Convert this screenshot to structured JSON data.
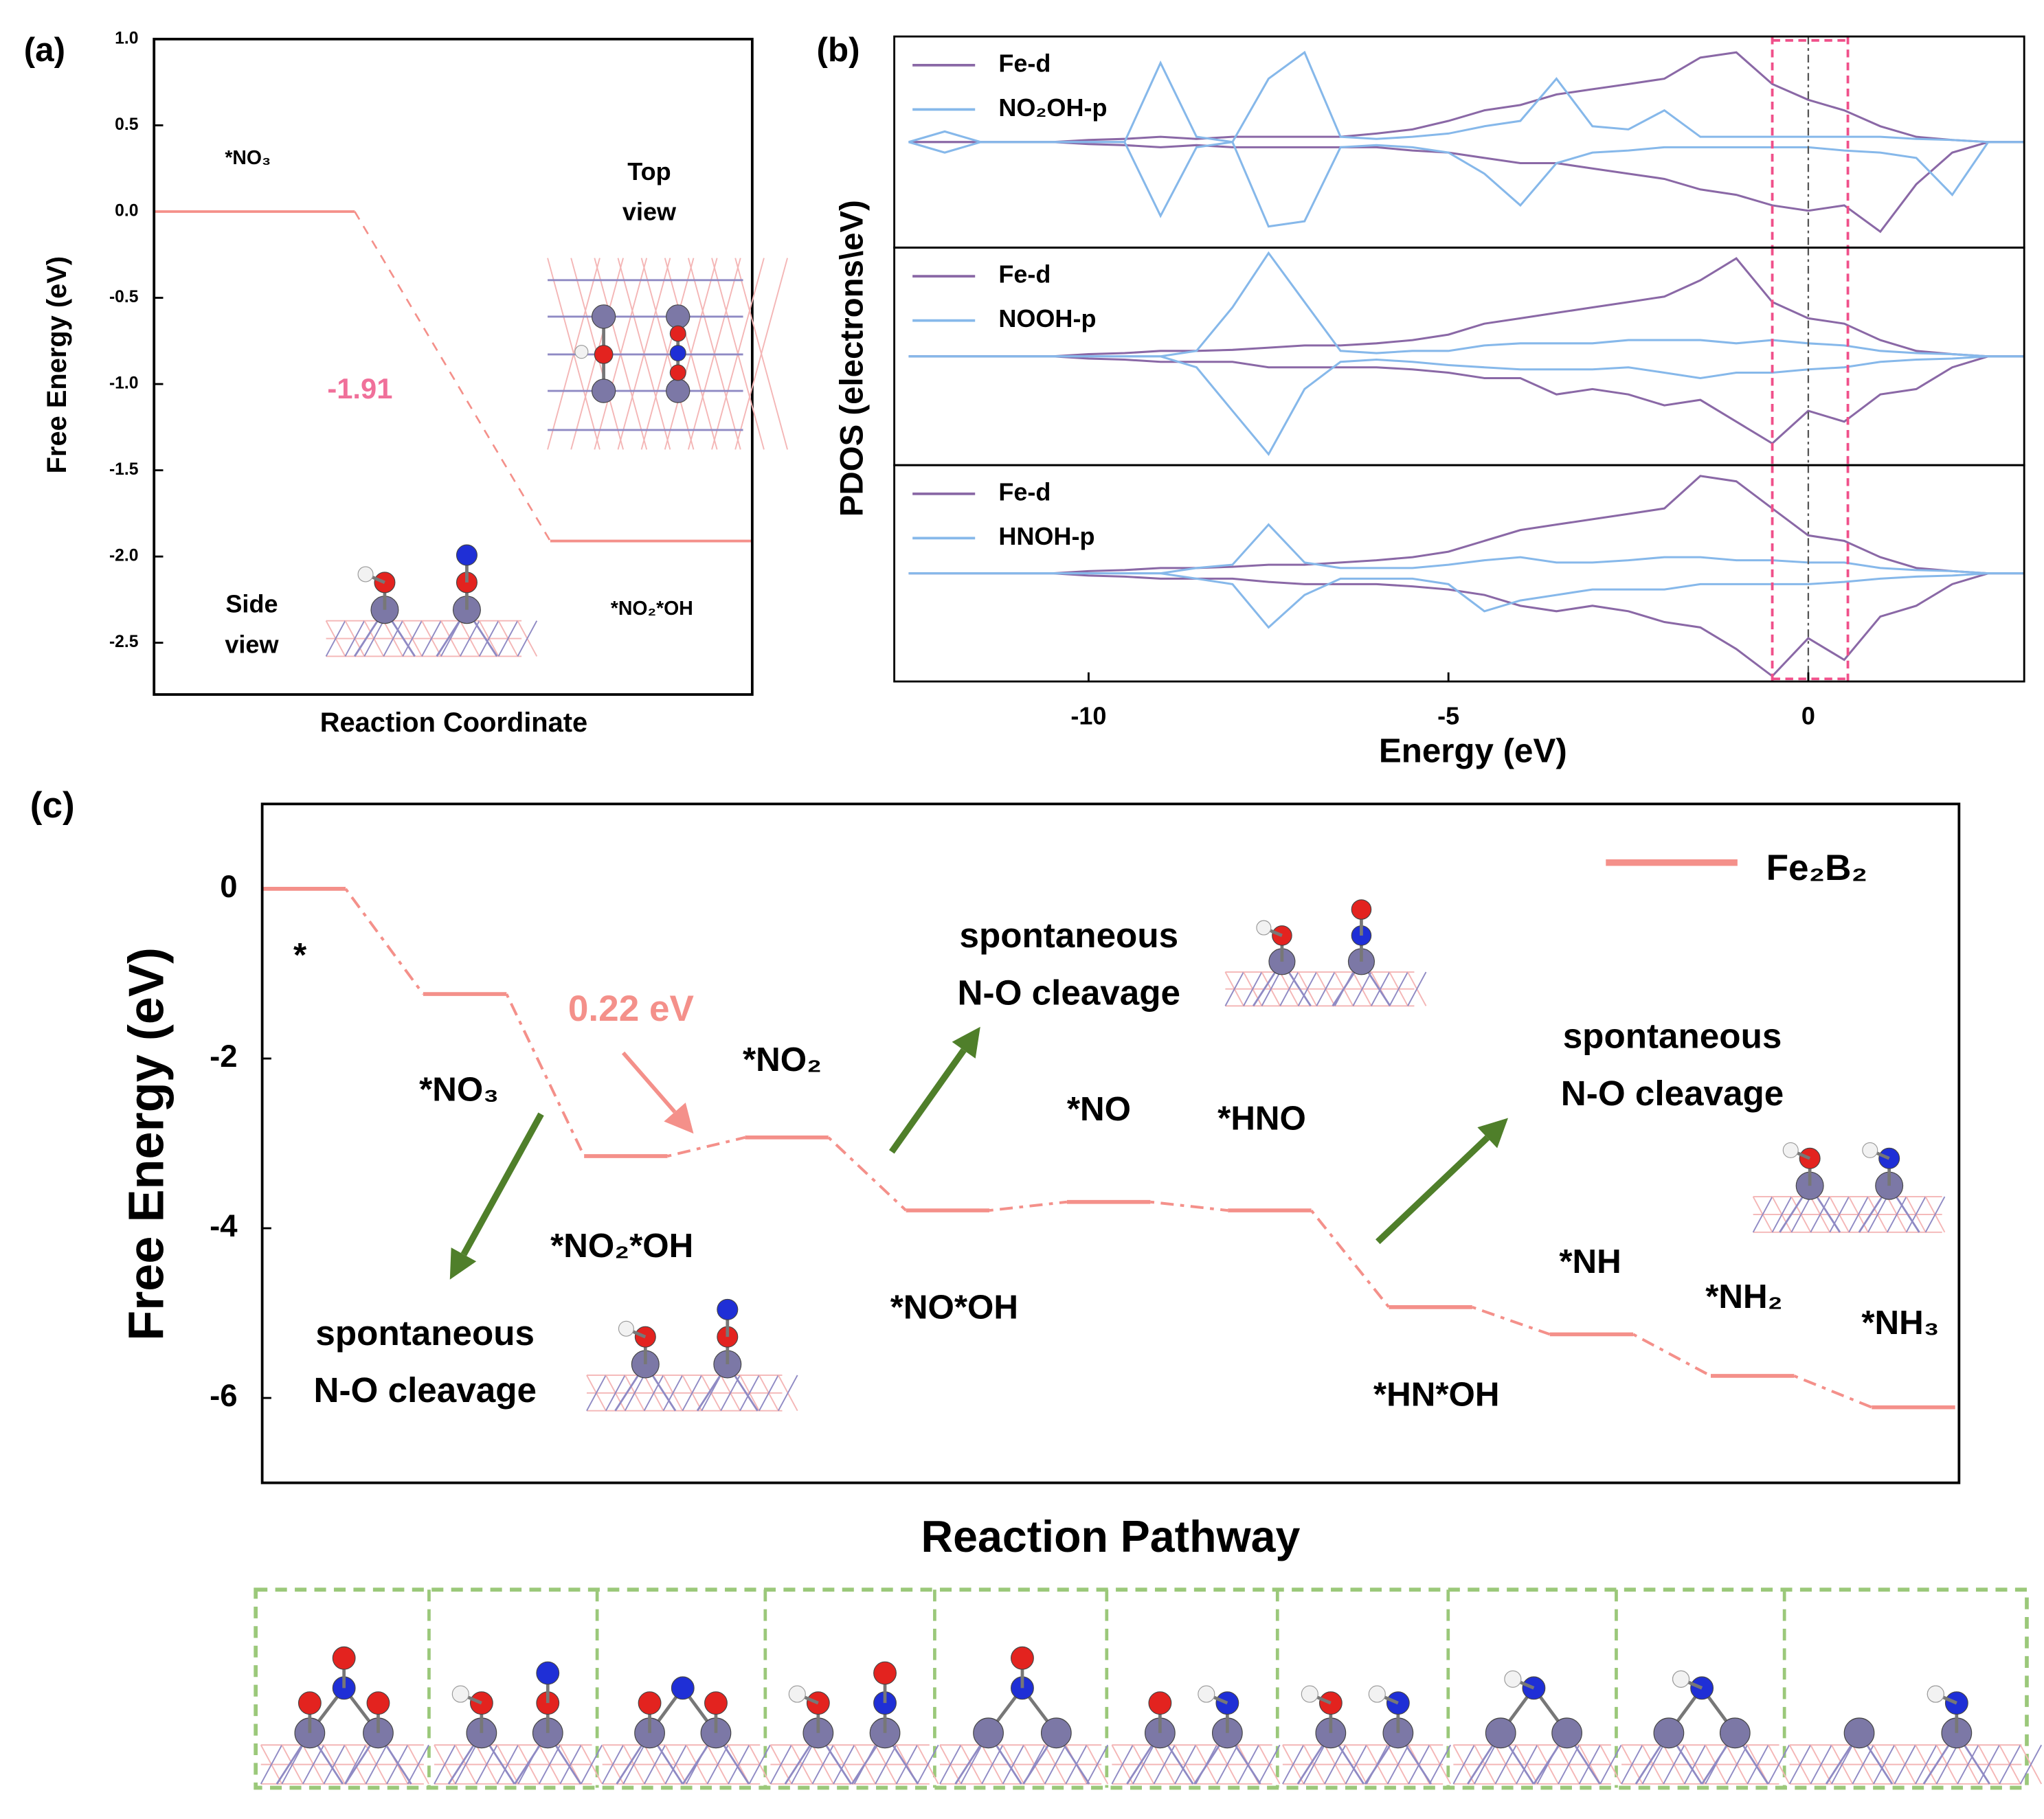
{
  "chart_data": [
    {
      "type": "step",
      "panel_label": "(a)",
      "ylabel": "Free Energy (eV)",
      "xlabel": "Reaction Coordinate",
      "categories": [
        "*NO₃",
        "*NO₂*OH"
      ],
      "values": [
        0,
        -1.91
      ],
      "color": "#f4908a",
      "annotation": "-1.91",
      "top_view_label": [
        "Top",
        "view"
      ],
      "side_view_label": [
        "Side",
        "view"
      ],
      "ylim": [
        -2.8,
        1.0
      ],
      "yticks": [
        {
          "value": 1,
          "label": "1.0"
        },
        {
          "value": 0.5,
          "label": "0.5"
        },
        {
          "value": 0,
          "label": "0.0"
        },
        {
          "value": -0.5,
          "label": "-0.5"
        },
        {
          "value": -1,
          "label": "-1.0"
        },
        {
          "value": -1.5,
          "label": "-1.5"
        },
        {
          "value": -2,
          "label": "-2.0"
        },
        {
          "value": -2.5,
          "label": "-2.5"
        }
      ]
    },
    {
      "type": "line",
      "panel_label": "(b)",
      "xlim": [
        -12.7,
        3.0
      ],
      "ylim": [
        -1,
        1
      ],
      "highlight_xlim": [
        -0.5,
        0.55
      ],
      "reference_x": 0,
      "x": [
        -12.5,
        -12,
        -11.5,
        -11,
        -10.5,
        -10,
        -9.5,
        -9,
        -8.5,
        -8,
        -7.5,
        -7,
        -6.5,
        -6,
        -5.5,
        -5,
        -4.5,
        -4,
        -3.5,
        -3,
        -2.5,
        -2,
        -1.5,
        -1,
        -0.5,
        0,
        0.5,
        1,
        1.5,
        2,
        2.5,
        3
      ],
      "series": [
        {
          "name": "Fe-d",
          "color": "#8a68a6",
          "values": [
            0,
            0,
            0,
            0,
            0,
            0.02,
            0.03,
            0.05,
            0.03,
            0.05,
            0.05,
            0.05,
            0.05,
            0.08,
            0.12,
            0.2,
            0.3,
            0.35,
            0.45,
            0.5,
            0.55,
            0.6,
            0.8,
            0.85,
            0.55,
            0.4,
            0.3,
            0.15,
            0.05,
            0.02,
            0,
            0
          ]
        },
        {
          "color": "#8a68a6",
          "values": [
            0,
            0,
            0,
            0,
            0,
            -0.02,
            -0.03,
            -0.05,
            -0.03,
            -0.05,
            -0.05,
            -0.05,
            -0.05,
            -0.05,
            -0.08,
            -0.1,
            -0.15,
            -0.2,
            -0.2,
            -0.25,
            -0.3,
            -0.35,
            -0.45,
            -0.5,
            -0.6,
            -0.65,
            -0.6,
            -0.85,
            -0.4,
            -0.1,
            0,
            0
          ]
        },
        {
          "name": "NO₂OH-p",
          "color": "#86b8ea",
          "values": [
            0,
            0.1,
            0,
            0,
            0,
            0,
            0,
            0.75,
            0.05,
            0,
            0.6,
            0.85,
            0.05,
            0.03,
            0.05,
            0.08,
            0.15,
            0.2,
            0.6,
            0.15,
            0.12,
            0.3,
            0.05,
            0.05,
            0.05,
            0.05,
            0.05,
            0.05,
            0.03,
            0.02,
            0,
            0
          ]
        },
        {
          "color": "#86b8ea",
          "values": [
            0,
            -0.1,
            0,
            0,
            0,
            0,
            0,
            -0.7,
            -0.05,
            0,
            -0.8,
            -0.75,
            -0.05,
            -0.03,
            -0.05,
            -0.1,
            -0.3,
            -0.6,
            -0.2,
            -0.1,
            -0.08,
            -0.05,
            -0.05,
            -0.05,
            -0.05,
            -0.05,
            -0.08,
            -0.1,
            -0.15,
            -0.5,
            0,
            0
          ]
        }
      ]
    },
    {
      "type": "line",
      "ylabel": "PDOS (electrons\\eV)",
      "xlim": [
        -12.7,
        3.0
      ],
      "ylim": [
        -1,
        1
      ],
      "highlight_xlim": [
        -0.5,
        0.55
      ],
      "reference_x": 0,
      "x": [
        -12.5,
        -12,
        -11.5,
        -11,
        -10.5,
        -10,
        -9.5,
        -9,
        -8.5,
        -8,
        -7.5,
        -7,
        -6.5,
        -6,
        -5.5,
        -5,
        -4.5,
        -4,
        -3.5,
        -3,
        -2.5,
        -2,
        -1.5,
        -1,
        -0.5,
        0,
        0.5,
        1,
        1.5,
        2,
        2.5,
        3
      ],
      "series": [
        {
          "name": "Fe-d",
          "color": "#8a68a6",
          "values": [
            0,
            0,
            0,
            0,
            0,
            0.02,
            0.03,
            0.05,
            0.05,
            0.06,
            0.08,
            0.1,
            0.1,
            0.12,
            0.15,
            0.2,
            0.3,
            0.35,
            0.4,
            0.45,
            0.5,
            0.55,
            0.7,
            0.9,
            0.5,
            0.35,
            0.3,
            0.15,
            0.05,
            0.02,
            0,
            0
          ]
        },
        {
          "color": "#8a68a6",
          "values": [
            0,
            0,
            0,
            0,
            0,
            -0.02,
            -0.03,
            -0.05,
            -0.05,
            -0.05,
            -0.1,
            -0.1,
            -0.1,
            -0.1,
            -0.12,
            -0.15,
            -0.2,
            -0.2,
            -0.35,
            -0.3,
            -0.35,
            -0.45,
            -0.4,
            -0.6,
            -0.8,
            -0.5,
            -0.6,
            -0.35,
            -0.3,
            -0.1,
            0,
            0
          ]
        },
        {
          "name": "NOOH-p",
          "color": "#86b8ea",
          "values": [
            0,
            0,
            0,
            0,
            0,
            0,
            0,
            0,
            0.05,
            0.45,
            0.95,
            0.5,
            0.05,
            0.03,
            0.05,
            0.05,
            0.1,
            0.12,
            0.12,
            0.12,
            0.15,
            0.15,
            0.15,
            0.12,
            0.15,
            0.12,
            0.1,
            0.05,
            0.03,
            0.02,
            0,
            0
          ]
        },
        {
          "color": "#86b8ea",
          "values": [
            0,
            0,
            0,
            0,
            0,
            0,
            0,
            0,
            -0.1,
            -0.5,
            -0.9,
            -0.3,
            -0.05,
            -0.03,
            -0.05,
            -0.08,
            -0.1,
            -0.12,
            -0.12,
            -0.12,
            -0.1,
            -0.15,
            -0.2,
            -0.15,
            -0.15,
            -0.12,
            -0.1,
            -0.05,
            -0.03,
            -0.02,
            0,
            0
          ]
        }
      ]
    },
    {
      "type": "line",
      "xlabel": "Energy (eV)",
      "xlim": [
        -12.7,
        3.0
      ],
      "xticks": [
        -10,
        -5,
        0
      ],
      "ylim": [
        -1,
        1
      ],
      "highlight_xlim": [
        -0.5,
        0.55
      ],
      "reference_x": 0,
      "x": [
        -12.5,
        -12,
        -11.5,
        -11,
        -10.5,
        -10,
        -9.5,
        -9,
        -8.5,
        -8,
        -7.5,
        -7,
        -6.5,
        -6,
        -5.5,
        -5,
        -4.5,
        -4,
        -3.5,
        -3,
        -2.5,
        -2,
        -1.5,
        -1,
        -0.5,
        0,
        0.5,
        1,
        1.5,
        2,
        2.5,
        3
      ],
      "series": [
        {
          "name": "Fe-d",
          "color": "#8a68a6",
          "values": [
            0,
            0,
            0,
            0,
            0,
            0.02,
            0.03,
            0.05,
            0.05,
            0.06,
            0.08,
            0.08,
            0.1,
            0.12,
            0.15,
            0.2,
            0.3,
            0.4,
            0.45,
            0.5,
            0.55,
            0.6,
            0.9,
            0.85,
            0.6,
            0.35,
            0.3,
            0.15,
            0.05,
            0.02,
            0,
            0
          ]
        },
        {
          "color": "#8a68a6",
          "values": [
            0,
            0,
            0,
            0,
            0,
            -0.02,
            -0.03,
            -0.05,
            -0.05,
            -0.05,
            -0.08,
            -0.1,
            -0.1,
            -0.1,
            -0.12,
            -0.15,
            -0.2,
            -0.3,
            -0.35,
            -0.3,
            -0.35,
            -0.45,
            -0.5,
            -0.7,
            -0.95,
            -0.6,
            -0.8,
            -0.4,
            -0.3,
            -0.1,
            0,
            0
          ]
        },
        {
          "name": "HNOH-p",
          "color": "#86b8ea",
          "values": [
            0,
            0,
            0,
            0,
            0,
            0,
            0,
            0,
            0.05,
            0.08,
            0.45,
            0.1,
            0.05,
            0.05,
            0.05,
            0.08,
            0.12,
            0.15,
            0.1,
            0.1,
            0.12,
            0.15,
            0.15,
            0.12,
            0.12,
            0.1,
            0.1,
            0.05,
            0.03,
            0.02,
            0,
            0
          ]
        },
        {
          "color": "#86b8ea",
          "values": [
            0,
            0,
            0,
            0,
            0,
            0,
            0,
            0,
            -0.05,
            -0.1,
            -0.5,
            -0.2,
            -0.05,
            -0.05,
            -0.05,
            -0.1,
            -0.35,
            -0.25,
            -0.2,
            -0.15,
            -0.15,
            -0.15,
            -0.1,
            -0.1,
            -0.1,
            -0.1,
            -0.08,
            -0.05,
            -0.03,
            -0.02,
            0,
            0
          ]
        }
      ]
    },
    {
      "type": "step",
      "panel_label": "(c)",
      "ylabel": "Free Energy (eV)",
      "xlabel": "Reaction Pathway",
      "categories": [
        "*",
        "*NO₃",
        "*NO₂*OH",
        "*NO₂",
        "*NO*OH",
        "*NO",
        "*HNO",
        "*HN*OH",
        "*NH",
        "*NH₂",
        "*NH₃"
      ],
      "series": [
        {
          "name": "Fe₂B₂",
          "color": "#f4908a",
          "values": [
            0,
            -1.24,
            -3.15,
            -2.93,
            -3.79,
            -3.69,
            -3.79,
            -4.93,
            -5.25,
            -5.74,
            -6.11
          ]
        }
      ],
      "annotation": "0.22 eV",
      "notes": [
        [
          "spontaneous",
          "N-O cleavage"
        ],
        [
          "spontaneous",
          "N-O cleavage"
        ],
        [
          "spontaneous",
          "N-O cleavage"
        ]
      ],
      "ylim": [
        -7,
        1
      ],
      "yticks": [
        0,
        -2,
        -4,
        -6
      ]
    }
  ]
}
